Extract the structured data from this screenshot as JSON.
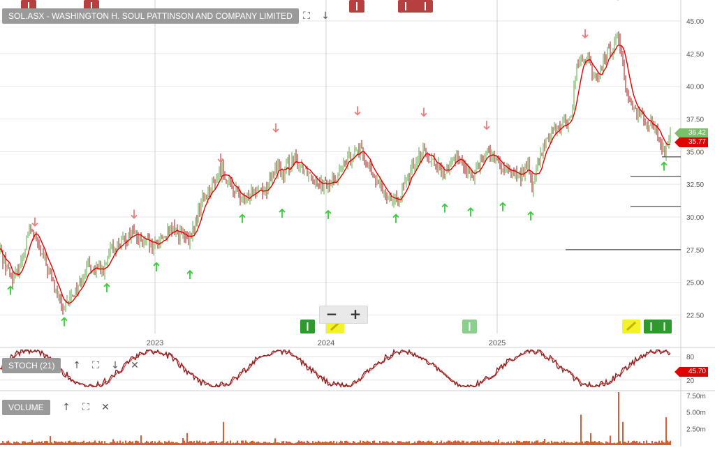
{
  "header": {
    "title": "SOL.ASX - WASHINGTON H. SOUL PATTINSON AND COMPANY LIMITED",
    "expand_icon": "expand-icon",
    "down_icon": "arrow-down-icon"
  },
  "chart_data": [
    {
      "type": "candlestick",
      "name": "price",
      "x_ticks": [
        "2023",
        "2024",
        "2025"
      ],
      "y_ticks": [
        "45.00",
        "42.50",
        "40.00",
        "37.50",
        "35.00",
        "32.50",
        "30.00",
        "27.50",
        "25.00",
        "22.50"
      ],
      "ylim": [
        21.0,
        46.5
      ],
      "last_price": "36.42",
      "moving_average": "35.77",
      "series": [
        {
          "name": "close",
          "points": [
            [
              0,
              27.5
            ],
            [
              10,
              26.0
            ],
            [
              20,
              25.2
            ],
            [
              30,
              26.5
            ],
            [
              40,
              28.8
            ],
            [
              48,
              28.9
            ],
            [
              55,
              27.5
            ],
            [
              65,
              26.5
            ],
            [
              75,
              25.0
            ],
            [
              85,
              23.5
            ],
            [
              92,
              22.8
            ],
            [
              100,
              23.8
            ],
            [
              110,
              24.5
            ],
            [
              120,
              25.8
            ],
            [
              130,
              26.2
            ],
            [
              140,
              25.8
            ],
            [
              150,
              26.0
            ],
            [
              160,
              27.5
            ],
            [
              170,
              27.9
            ],
            [
              180,
              28.3
            ],
            [
              190,
              29.0
            ],
            [
              200,
              28.1
            ],
            [
              210,
              28.0
            ],
            [
              220,
              27.6
            ],
            [
              230,
              28.4
            ],
            [
              240,
              28.7
            ],
            [
              250,
              29.0
            ],
            [
              260,
              28.6
            ],
            [
              270,
              28.0
            ],
            [
              280,
              29.5
            ],
            [
              290,
              31.5
            ],
            [
              300,
              32.0
            ],
            [
              310,
              33.0
            ],
            [
              318,
              33.8
            ],
            [
              325,
              32.8
            ],
            [
              335,
              32.0
            ],
            [
              345,
              31.5
            ],
            [
              352,
              31.0
            ],
            [
              360,
              32.3
            ],
            [
              370,
              32.2
            ],
            [
              380,
              32.0
            ],
            [
              390,
              33.2
            ],
            [
              400,
              34.2
            ],
            [
              405,
              32.8
            ],
            [
              412,
              34.0
            ],
            [
              420,
              34.3
            ],
            [
              430,
              34.0
            ],
            [
              440,
              33.6
            ],
            [
              450,
              33.0
            ],
            [
              460,
              32.6
            ],
            [
              470,
              32.4
            ],
            [
              480,
              33.0
            ],
            [
              490,
              33.8
            ],
            [
              500,
              34.6
            ],
            [
              512,
              35.2
            ],
            [
              520,
              34.8
            ],
            [
              530,
              33.5
            ],
            [
              540,
              32.6
            ],
            [
              550,
              32.0
            ],
            [
              560,
              31.5
            ],
            [
              568,
              31.0
            ],
            [
              575,
              32.0
            ],
            [
              585,
              33.0
            ],
            [
              595,
              34.4
            ],
            [
              607,
              35.1
            ],
            [
              615,
              34.6
            ],
            [
              625,
              34.0
            ],
            [
              635,
              33.2
            ],
            [
              645,
              34.0
            ],
            [
              655,
              34.8
            ],
            [
              665,
              33.8
            ],
            [
              675,
              33.0
            ],
            [
              685,
              34.2
            ],
            [
              697,
              35.0
            ],
            [
              705,
              34.6
            ],
            [
              715,
              33.9
            ],
            [
              725,
              33.4
            ],
            [
              735,
              33.5
            ],
            [
              745,
              33.0
            ],
            [
              755,
              34.2
            ],
            [
              762,
              32.3
            ],
            [
              770,
              34.0
            ],
            [
              780,
              35.5
            ],
            [
              790,
              36.6
            ],
            [
              800,
              37.0
            ],
            [
              810,
              37.2
            ],
            [
              818,
              37.5
            ],
            [
              825,
              41.5
            ],
            [
              832,
              42.0
            ],
            [
              840,
              42.2
            ],
            [
              848,
              41.0
            ],
            [
              855,
              40.3
            ],
            [
              862,
              41.8
            ],
            [
              870,
              42.6
            ],
            [
              878,
              42.8
            ],
            [
              885,
              44.5
            ],
            [
              890,
              42.0
            ],
            [
              897,
              39.8
            ],
            [
              905,
              38.4
            ],
            [
              915,
              38.0
            ],
            [
              925,
              37.5
            ],
            [
              935,
              37.0
            ],
            [
              942,
              36.2
            ],
            [
              950,
              35.0
            ],
            [
              955,
              35.5
            ],
            [
              960,
              36.42
            ]
          ]
        },
        {
          "name": "lows",
          "points": [
            [
              15,
              25.0
            ],
            [
              92,
              22.6
            ],
            [
              153,
              25.2
            ],
            [
              224,
              26.8
            ],
            [
              272,
              26.2
            ],
            [
              347,
              30.5
            ],
            [
              404,
              30.9
            ],
            [
              470,
              30.8
            ],
            [
              567,
              30.5
            ],
            [
              637,
              31.3
            ],
            [
              674,
              31.0
            ],
            [
              720,
              31.4
            ],
            [
              760,
              30.7
            ],
            [
              951,
              34.5
            ]
          ]
        },
        {
          "name": "highs",
          "points": [
            [
              50,
              29.0
            ],
            [
              192,
              29.6
            ],
            [
              316,
              33.9
            ],
            [
              395,
              36.2
            ],
            [
              512,
              37.5
            ],
            [
              607,
              37.4
            ],
            [
              697,
              36.4
            ],
            [
              838,
              43.4
            ],
            [
              885,
              46.3
            ]
          ]
        },
        {
          "name": "support",
          "points": [
            [
              948,
              34.6
            ],
            [
              903,
              33.1
            ],
            [
              903,
              30.8
            ],
            [
              810,
              27.5
            ]
          ]
        }
      ]
    },
    {
      "type": "line",
      "name": "stochastic",
      "label": "STOCH (21)",
      "y_ticks": [
        "80",
        "20"
      ],
      "ylim": [
        0,
        100
      ],
      "last_value": "45.70"
    },
    {
      "type": "bar",
      "name": "volume",
      "label": "VOLUME",
      "y_ticks": [
        "7.50m",
        "5.00m",
        "2.50m"
      ],
      "ylim": [
        0,
        8.0
      ]
    }
  ],
  "colors": {
    "bull": "#5aaa3c",
    "bear": "#a31515",
    "ma": "#e00000",
    "up_arrow": "#33cc33",
    "down_arrow": "#e87d7d",
    "grid": "#e6e6e6",
    "volume": "#cc3300",
    "stoch_k": "#8b1a1a",
    "stoch_d": "#cc3b3b"
  }
}
